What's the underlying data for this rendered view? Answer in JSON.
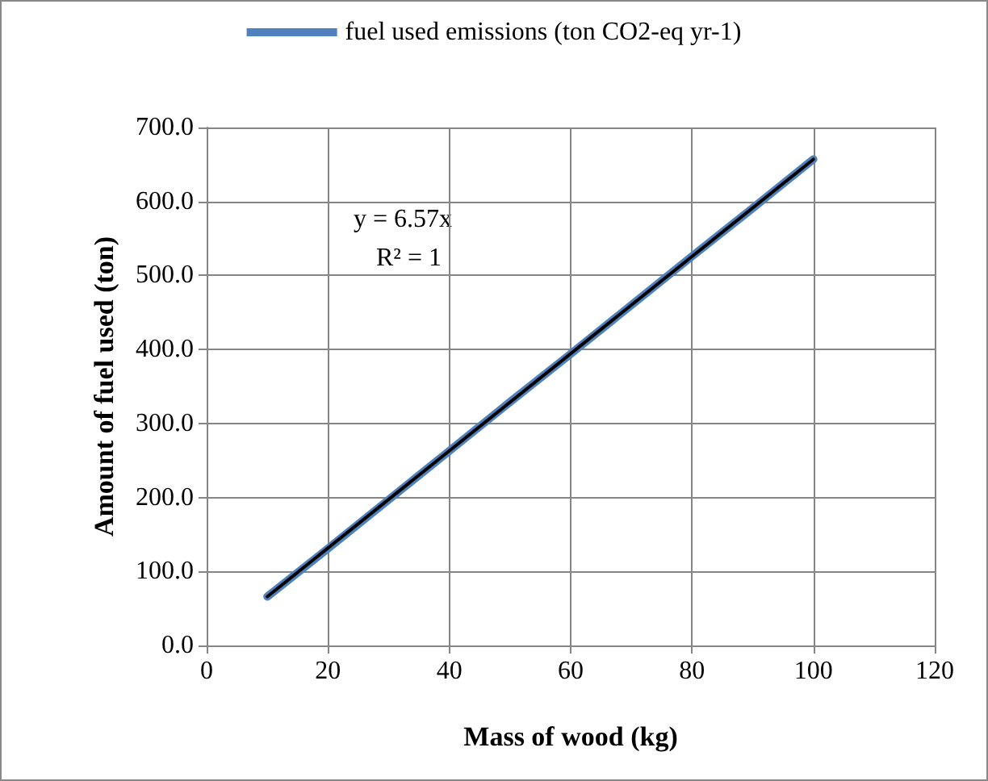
{
  "chart_data": {
    "type": "line",
    "xlabel": "Mass of wood (kg)",
    "ylabel": "Amount of fuel used (ton)",
    "xlim": [
      0,
      120
    ],
    "xticks": [
      0,
      20,
      40,
      60,
      80,
      100,
      120
    ],
    "ylim": [
      0,
      700
    ],
    "yticks": [
      {
        "value": 0,
        "label": "0.0"
      },
      {
        "value": 100,
        "label": "100.0"
      },
      {
        "value": 200,
        "label": "200.0"
      },
      {
        "value": 300,
        "label": "300.0"
      },
      {
        "value": 400,
        "label": "400.0"
      },
      {
        "value": 500,
        "label": "500.0"
      },
      {
        "value": 600,
        "label": "600.0"
      },
      {
        "value": 700,
        "label": "700.0"
      }
    ],
    "series": [
      {
        "name": "fuel used emissions (ton CO2-eq yr-1)",
        "color": "#4f81bd",
        "x": [
          10,
          20,
          30,
          40,
          50,
          60,
          70,
          80,
          90,
          100
        ],
        "values": [
          66,
          131,
          197,
          263,
          329,
          394,
          460,
          526,
          591,
          657
        ]
      },
      {
        "type": "line",
        "color": "#000000",
        "x": [
          10,
          100
        ],
        "values": [
          66,
          657
        ]
      }
    ],
    "annotations": [
      "y = 6.57x",
      "R² = 1"
    ],
    "grid": true,
    "legend": "top",
    "marker": "none",
    "line_style": "solid"
  }
}
